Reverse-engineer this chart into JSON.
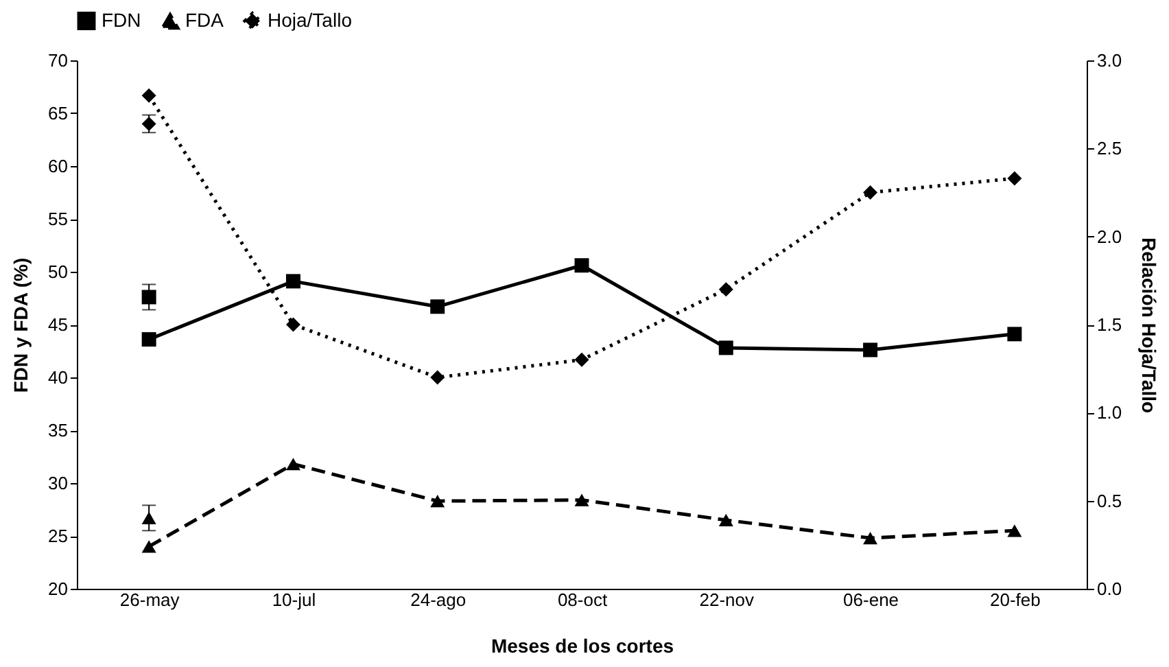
{
  "chart_data": {
    "type": "line",
    "xlabel": "Meses de los cortes",
    "ylabel": "FDN y FDA (%)",
    "y2label": "Relación Hoja/Tallo",
    "categories": [
      "26-may",
      "10-jul",
      "24-ago",
      "08-oct",
      "22-nov",
      "06-ene",
      "20-feb"
    ],
    "series": [
      {
        "name": "FDN",
        "color": "#000000",
        "marker": "square",
        "line_style": "solid",
        "values": [
          43.6,
          49.1,
          46.7,
          50.6,
          42.8,
          42.6,
          44.1
        ]
      },
      {
        "name": "FDA",
        "color": "#000000",
        "marker": "triangle",
        "line_style": "dashed",
        "values": [
          24.0,
          31.8,
          28.3,
          28.4,
          26.5,
          24.8,
          25.5
        ]
      },
      {
        "name": "Hoja/Tallo",
        "color": "#000000",
        "marker": "diamond",
        "line_style": "dotted",
        "axis": "y2",
        "values": [
          2.8,
          1.5,
          1.2,
          1.3,
          1.7,
          2.25,
          2.33
        ]
      },
      {
        "type": "scatter",
        "color": "#000000",
        "marker": "square",
        "values": [
          47.6,
          null,
          null,
          null,
          null,
          null,
          null
        ],
        "errors": [
          1.2,
          null,
          null,
          null,
          null,
          null,
          null
        ]
      },
      {
        "type": "scatter",
        "color": "#000000",
        "marker": "triangle",
        "values": [
          26.7,
          null,
          null,
          null,
          null,
          null,
          null
        ],
        "errors": [
          1.2,
          null,
          null,
          null,
          null,
          null,
          null
        ]
      },
      {
        "type": "scatter",
        "color": "#000000",
        "marker": "diamond",
        "axis": "y2",
        "values": [
          2.64,
          null,
          null,
          null,
          null,
          null,
          null
        ],
        "errors": [
          0.05,
          null,
          null,
          null,
          null,
          null,
          null
        ]
      }
    ],
    "ylim": [
      20,
      70
    ],
    "yticks": [
      20,
      25,
      30,
      35,
      40,
      45,
      50,
      55,
      60,
      65,
      70
    ],
    "y2lim": [
      0,
      3
    ],
    "y2ticks": [
      {
        "value": 0,
        "label": "0.0"
      },
      {
        "value": 0.5,
        "label": "0.5"
      },
      {
        "value": 1,
        "label": "1.0"
      },
      {
        "value": 1.5,
        "label": "1.5"
      },
      {
        "value": 2,
        "label": "2.0"
      },
      {
        "value": 2.5,
        "label": "2.5"
      },
      {
        "value": 3,
        "label": "3.0"
      }
    ],
    "legend": "top",
    "grid": false
  }
}
